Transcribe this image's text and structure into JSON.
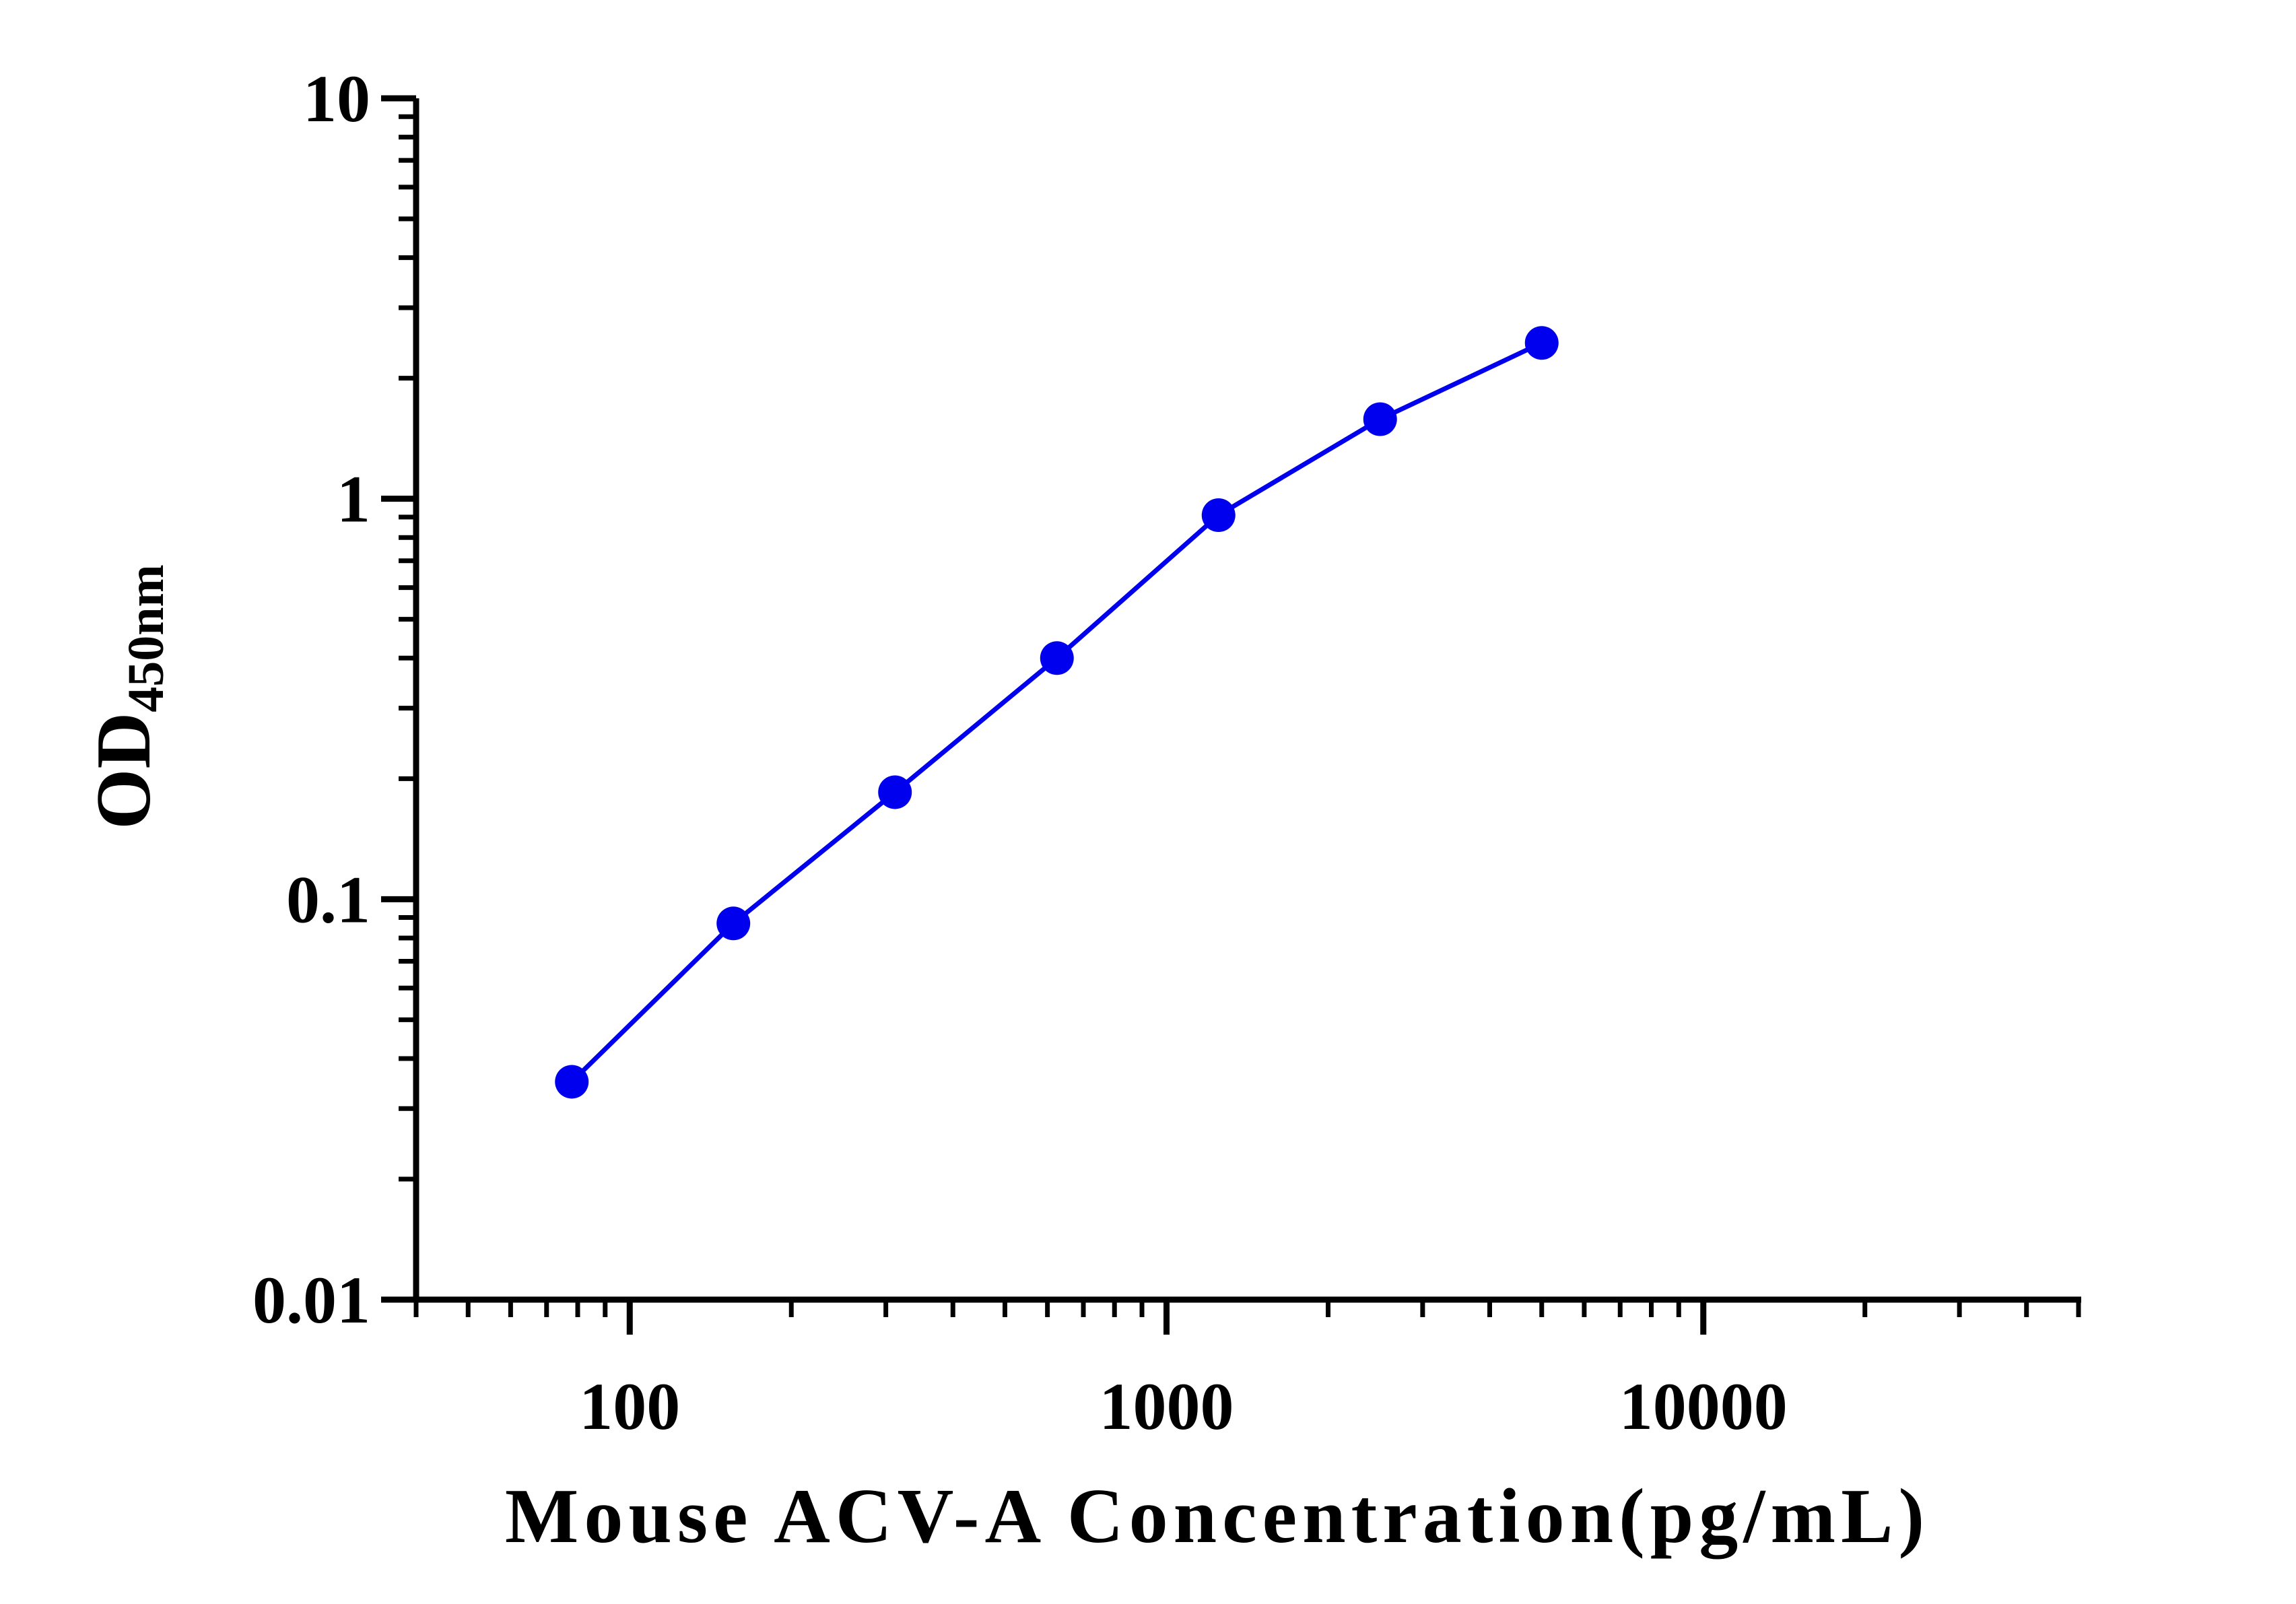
{
  "chart_data": {
    "type": "line",
    "xlabel": "Mouse ACV-A Concentration(pg/mL)",
    "ylabel_main": "OD",
    "ylabel_sub": "450nm",
    "x_scale": "log",
    "y_scale": "log",
    "xlim": [
      40,
      50000
    ],
    "ylim": [
      0.01,
      10
    ],
    "x_tick_labels": [
      "100",
      "1000",
      "10000"
    ],
    "y_tick_labels": [
      "0.01",
      "0.1",
      "1",
      "10"
    ],
    "x_tick_values": [
      100,
      1000,
      10000
    ],
    "y_tick_values": [
      0.01,
      0.1,
      1,
      10
    ],
    "grid": false,
    "color": "#0000ee",
    "series": [
      {
        "x": [
          78,
          156,
          312,
          625,
          1250,
          2500,
          5000
        ],
        "y": [
          0.035,
          0.087,
          0.185,
          0.4,
          0.91,
          1.58,
          2.45
        ]
      }
    ]
  }
}
